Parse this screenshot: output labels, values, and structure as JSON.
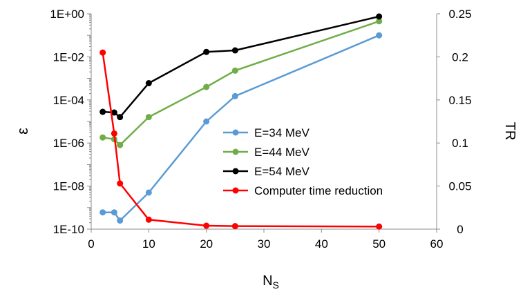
{
  "chart_data": {
    "type": "line",
    "xlabel": "N",
    "xlabel_sub": "S",
    "ylabel": "ε",
    "y2label": "TR",
    "xlim": [
      0,
      60
    ],
    "xticks": [
      "0",
      "10",
      "20",
      "30",
      "40",
      "50",
      "60"
    ],
    "y_scale": "log",
    "ylim": [
      1e-10,
      1
    ],
    "yticks": [
      "1E-10",
      "1E-08",
      "1E-06",
      "1E-04",
      "1E-02",
      "1E+00"
    ],
    "y2lim": [
      0,
      0.25
    ],
    "y2ticks": [
      "0",
      "0.05",
      "0.1",
      "0.15",
      "0.2",
      "0.25"
    ],
    "grid": false,
    "legend_position": "right-center",
    "series": [
      {
        "name": "E=34 MeV",
        "axis": "left",
        "color": "#5b9bd5",
        "x": [
          2,
          4,
          5,
          10,
          20,
          25,
          50
        ],
        "y": [
          6e-10,
          6e-10,
          2.5e-10,
          5e-09,
          1e-05,
          0.00015,
          0.1
        ]
      },
      {
        "name": "E=44 MeV",
        "axis": "left",
        "color": "#70ad47",
        "x": [
          2,
          4,
          5,
          10,
          20,
          25,
          50
        ],
        "y": [
          1.8e-06,
          1.5e-06,
          8e-07,
          1.6e-05,
          0.0004,
          0.0023,
          0.45
        ]
      },
      {
        "name": "E=54 MeV",
        "axis": "left",
        "color": "#000000",
        "x": [
          2,
          4,
          5,
          10,
          20,
          25,
          50
        ],
        "y": [
          2.8e-05,
          2.6e-05,
          1.6e-05,
          0.0006,
          0.017,
          0.02,
          0.75
        ]
      },
      {
        "name": "Computer time reduction",
        "axis": "right",
        "color": "#ff0000",
        "x": [
          2,
          4,
          5,
          10,
          20,
          25,
          50
        ],
        "y": [
          0.205,
          0.111,
          0.053,
          0.011,
          0.004,
          0.0035,
          0.003
        ]
      }
    ]
  }
}
